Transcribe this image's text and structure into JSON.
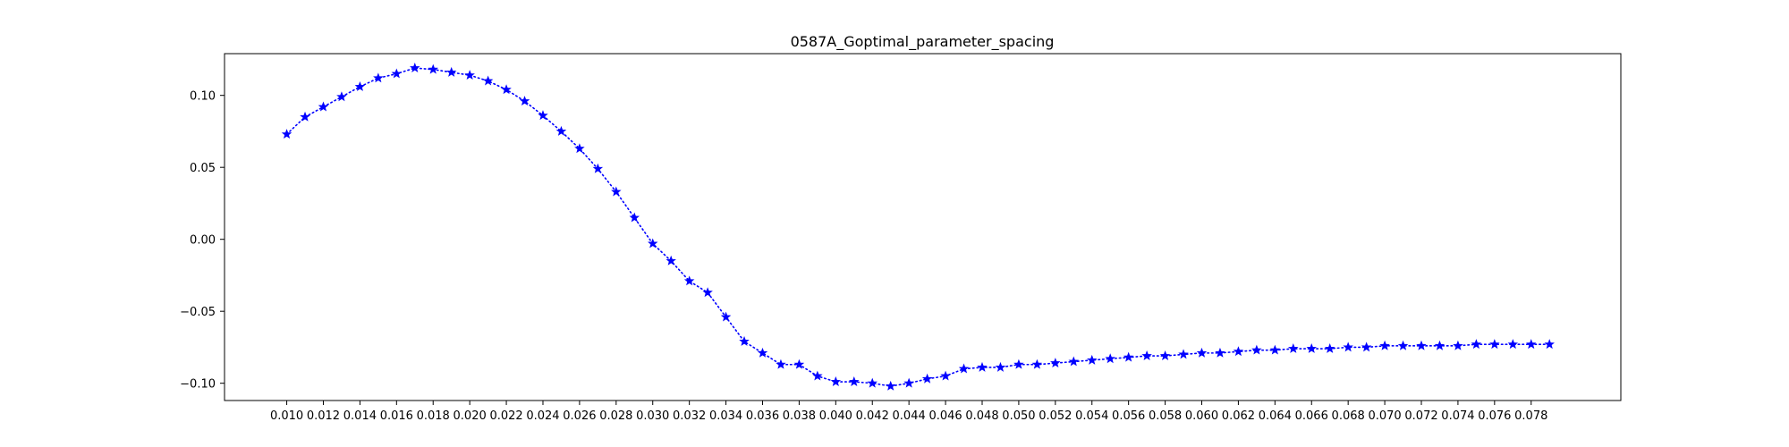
{
  "chart_data": {
    "type": "line",
    "title": "0587A_Goptimal_parameter_spacing",
    "xlabel": "",
    "ylabel": "",
    "x_tick_labels": [
      "0.010",
      "0.012",
      "0.014",
      "0.016",
      "0.018",
      "0.020",
      "0.022",
      "0.024",
      "0.026",
      "0.028",
      "0.030",
      "0.032",
      "0.034",
      "0.036",
      "0.038",
      "0.040",
      "0.042",
      "0.044",
      "0.046",
      "0.048",
      "0.050",
      "0.052",
      "0.054",
      "0.056",
      "0.058",
      "0.060",
      "0.062",
      "0.064",
      "0.066",
      "0.068",
      "0.070",
      "0.072",
      "0.074",
      "0.076",
      "0.078"
    ],
    "y_tick_labels": [
      "0.10",
      "0.05",
      "0.00",
      "−0.05",
      "−0.10"
    ],
    "y_ticks": [
      0.1,
      0.05,
      0.0,
      -0.05,
      -0.1
    ],
    "xlim": [
      0.0066,
      0.0829
    ],
    "ylim": [
      -0.112,
      0.129
    ],
    "grid": false,
    "series": [
      {
        "color": "#0000ff",
        "line_style": "dotted",
        "marker": "star",
        "x": [
          0.01,
          0.011,
          0.012,
          0.013,
          0.014,
          0.015,
          0.016,
          0.017,
          0.018,
          0.019,
          0.02,
          0.021,
          0.022,
          0.023,
          0.024,
          0.025,
          0.026,
          0.027,
          0.028,
          0.029,
          0.03,
          0.031,
          0.032,
          0.033,
          0.034,
          0.035,
          0.036,
          0.037,
          0.038,
          0.039,
          0.04,
          0.041,
          0.042,
          0.043,
          0.044,
          0.045,
          0.046,
          0.047,
          0.048,
          0.049,
          0.05,
          0.051,
          0.052,
          0.053,
          0.054,
          0.055,
          0.056,
          0.057,
          0.058,
          0.059,
          0.06,
          0.061,
          0.062,
          0.063,
          0.064,
          0.065,
          0.066,
          0.067,
          0.068,
          0.069,
          0.07,
          0.071,
          0.072,
          0.073,
          0.074,
          0.075,
          0.076,
          0.077,
          0.078,
          0.079
        ],
        "y": [
          0.073,
          0.085,
          0.092,
          0.099,
          0.106,
          0.112,
          0.115,
          0.119,
          0.118,
          0.116,
          0.114,
          0.11,
          0.104,
          0.096,
          0.086,
          0.075,
          0.063,
          0.049,
          0.033,
          0.015,
          -0.003,
          -0.015,
          -0.029,
          -0.037,
          -0.054,
          -0.071,
          -0.079,
          -0.087,
          -0.087,
          -0.095,
          -0.099,
          -0.099,
          -0.1,
          -0.102,
          -0.1,
          -0.097,
          -0.095,
          -0.09,
          -0.089,
          -0.089,
          -0.087,
          -0.087,
          -0.086,
          -0.085,
          -0.084,
          -0.083,
          -0.082,
          -0.081,
          -0.081,
          -0.08,
          -0.079,
          -0.079,
          -0.078,
          -0.077,
          -0.077,
          -0.076,
          -0.076,
          -0.076,
          -0.075,
          -0.075,
          -0.074,
          -0.074,
          -0.074,
          -0.074,
          -0.074,
          -0.073,
          -0.073,
          -0.073,
          -0.073,
          -0.073
        ]
      }
    ]
  }
}
